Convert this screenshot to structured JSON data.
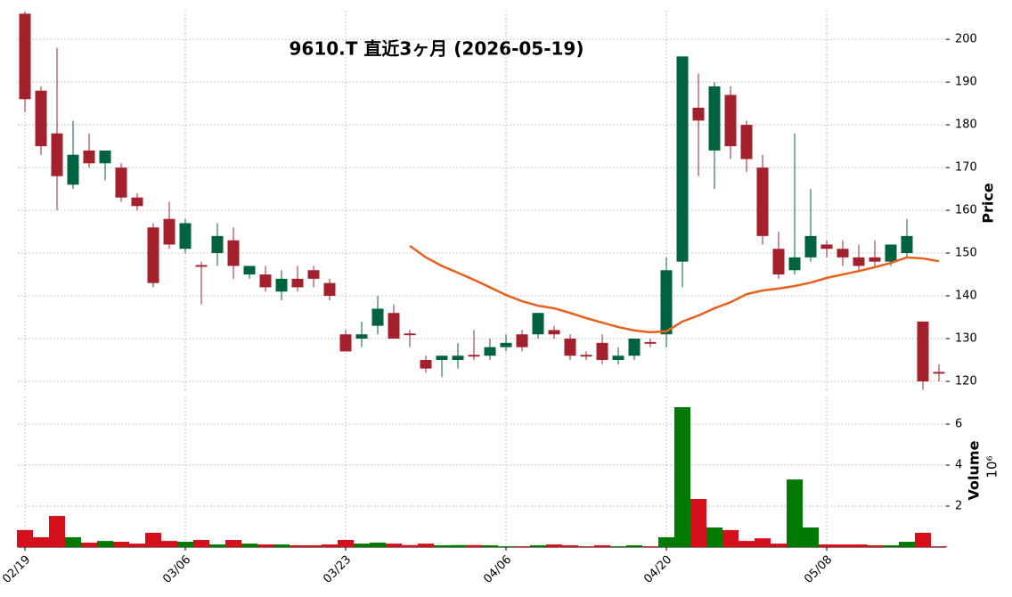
{
  "chart_data": {
    "type": "candlestick",
    "title": "9610.T 直近3ヶ月 (2026-05-19)",
    "ylabel": "Price",
    "volume_ylabel": "Volume",
    "volume_multiplier": "10⁶",
    "categories": [
      "02/19",
      null,
      null,
      null,
      null,
      null,
      null,
      null,
      null,
      null,
      "03/06",
      null,
      null,
      null,
      null,
      null,
      null,
      null,
      null,
      null,
      "03/23",
      null,
      null,
      null,
      null,
      null,
      null,
      null,
      null,
      null,
      "04/06",
      null,
      null,
      null,
      null,
      null,
      null,
      null,
      null,
      null,
      "04/20",
      null,
      null,
      null,
      null,
      null,
      null,
      null,
      null,
      null,
      "05/08",
      null,
      null,
      null,
      null,
      null,
      null,
      null
    ],
    "open": [
      206,
      188,
      178,
      166,
      174,
      171,
      170,
      163,
      156,
      158,
      151,
      147.2,
      150,
      153,
      145,
      145,
      141,
      144,
      146,
      143,
      131,
      130,
      133,
      136,
      131.2,
      125,
      125,
      125,
      126.2,
      126,
      128,
      131,
      131,
      132,
      130,
      126.2,
      129,
      125,
      126,
      129.2,
      131,
      148,
      184,
      174,
      187,
      180,
      170,
      151,
      146,
      149,
      152,
      151,
      149,
      149,
      148,
      150,
      134,
      122.2
    ],
    "high": [
      206.5,
      189,
      198,
      181,
      178,
      174,
      171,
      164,
      157,
      162,
      158,
      148,
      157,
      156,
      147,
      147,
      146,
      147,
      147,
      144,
      132,
      134,
      140,
      138,
      132,
      126,
      126,
      129,
      132,
      130,
      131,
      132,
      136,
      133,
      131,
      127,
      131,
      128,
      130,
      130,
      149,
      196,
      192,
      190,
      189,
      181,
      173,
      155,
      178,
      165,
      153,
      153,
      152,
      153,
      152,
      158,
      134,
      124
    ],
    "low": [
      183,
      173,
      160,
      165,
      170,
      167,
      162,
      160,
      142,
      151,
      150,
      138,
      147,
      144,
      144,
      141,
      139,
      141,
      142,
      139,
      127,
      128,
      131,
      130,
      128,
      122,
      121,
      123,
      125,
      125,
      127,
      127,
      130,
      130,
      125,
      125,
      124,
      124,
      125,
      128,
      128,
      142,
      168,
      165,
      172,
      169,
      152,
      144,
      145,
      148,
      149,
      147,
      146,
      147,
      147,
      149,
      118,
      120
    ],
    "close": [
      186,
      175,
      168,
      173,
      171,
      174,
      163,
      161,
      143,
      152,
      157,
      146.8,
      154,
      147,
      147,
      142,
      144,
      142,
      144,
      140,
      127,
      131,
      137,
      130,
      130.8,
      123,
      126,
      126,
      125.8,
      128,
      129,
      128,
      136,
      131,
      126,
      125.8,
      125,
      126,
      130,
      128.8,
      146,
      196,
      181,
      189,
      175,
      172,
      154,
      145,
      149,
      154,
      151,
      149,
      147,
      148,
      152,
      154,
      120,
      121.8
    ],
    "volume": [
      0.83,
      0.48,
      1.52,
      0.48,
      0.22,
      0.3,
      0.26,
      0.17,
      0.7,
      0.3,
      0.26,
      0.35,
      0.13,
      0.35,
      0.17,
      0.13,
      0.13,
      0.09,
      0.09,
      0.13,
      0.35,
      0.17,
      0.22,
      0.17,
      0.1,
      0.17,
      0.09,
      0.1,
      0.1,
      0.09,
      0.04,
      0.04,
      0.09,
      0.13,
      0.09,
      0.04,
      0.09,
      0.04,
      0.09,
      0.04,
      0.48,
      6.83,
      2.35,
      0.96,
      0.83,
      0.3,
      0.43,
      0.17,
      3.3,
      0.96,
      0.13,
      0.13,
      0.13,
      0.09,
      0.09,
      0.26,
      0.7,
      0.04
    ],
    "moving_average": {
      "color": "#e8601c",
      "values": [
        null,
        null,
        null,
        null,
        null,
        null,
        null,
        null,
        null,
        null,
        null,
        null,
        null,
        null,
        null,
        null,
        null,
        null,
        null,
        null,
        null,
        null,
        null,
        null,
        151.7,
        149,
        147,
        145.4,
        143.75,
        142,
        140.2,
        138.75,
        137.7,
        137.1,
        136,
        134.8,
        133.75,
        132.7,
        131.9,
        131.5,
        131.7,
        134,
        135.4,
        137.1,
        138.5,
        140.4,
        141.25,
        141.7,
        142.3,
        143.1,
        144.2,
        145,
        145.8,
        146.7,
        147.7,
        149,
        148.75,
        148.1
      ]
    },
    "up_color": "#006340",
    "down_color": "#a3202c",
    "volume_up_color": "#007a00",
    "volume_down_color": "#d5101c",
    "ylim": [
      117.5,
      206.7
    ],
    "yticks": [
      120,
      130,
      140,
      150,
      160,
      170,
      180,
      190,
      200
    ],
    "volume_ylim": [
      0,
      7.35
    ],
    "volume_yticks": [
      2,
      4,
      6
    ],
    "grid": true
  }
}
